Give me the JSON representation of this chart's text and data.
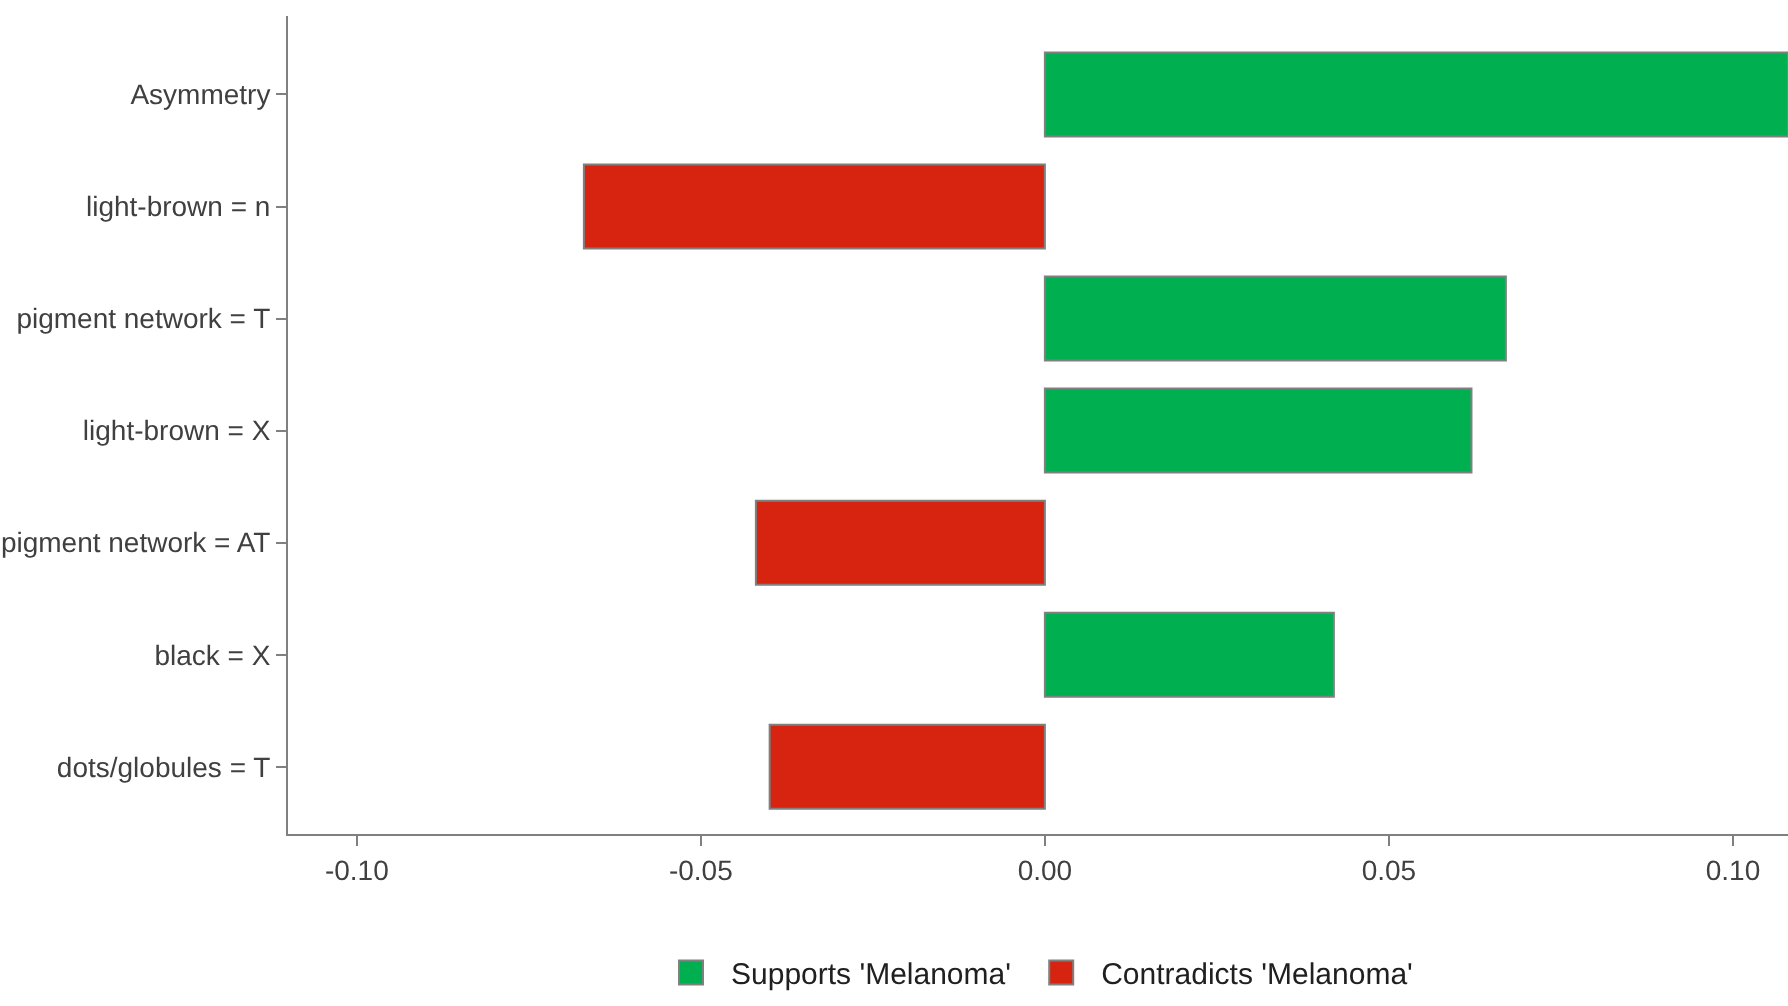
{
  "chart_data": {
    "type": "bar",
    "orientation": "horizontal",
    "categories": [
      "Asymmetry",
      "light-brown = n",
      "pigment network = T",
      "light-brown = X",
      "pigment network = AT",
      "black = X",
      "dots/globules = T"
    ],
    "series": [
      {
        "name": "Supports 'Melanoma'",
        "color": "#00b050",
        "values": [
          0.108,
          null,
          0.067,
          0.062,
          null,
          0.042,
          null
        ]
      },
      {
        "name": "Contradicts 'Melanoma'",
        "color": "#d62410",
        "values": [
          null,
          -0.067,
          null,
          null,
          -0.042,
          null,
          -0.04
        ]
      }
    ],
    "xlim": [
      -0.11,
      0.108
    ],
    "xticks": [
      {
        "value": -0.1,
        "label": "-0.10"
      },
      {
        "value": -0.05,
        "label": "-0.05"
      },
      {
        "value": 0,
        "label": "0.00"
      },
      {
        "value": 0.05,
        "label": "0.05"
      },
      {
        "value": 0.1,
        "label": "0.10"
      }
    ],
    "legend": "bottom"
  }
}
